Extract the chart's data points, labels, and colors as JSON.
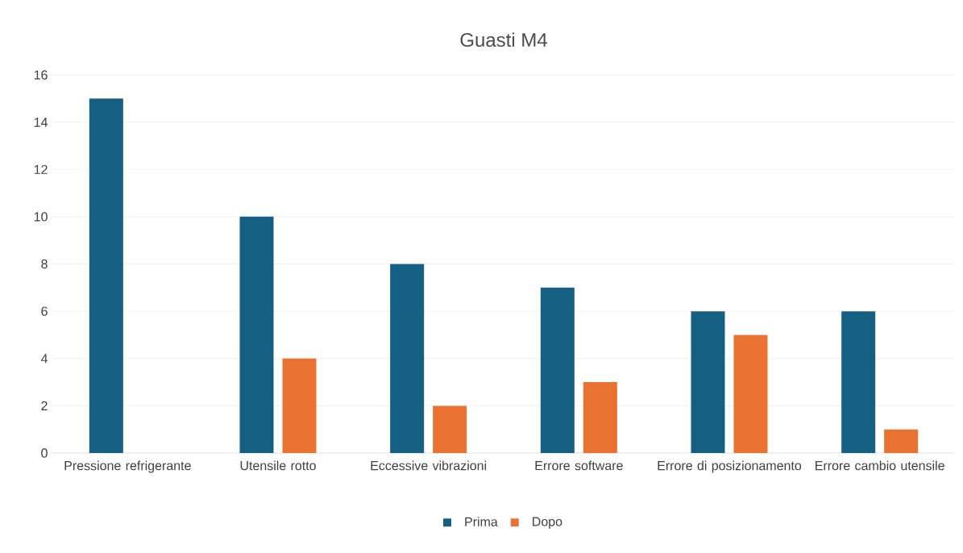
{
  "chart_data": {
    "type": "bar",
    "title": "Guasti M4",
    "categories": [
      "Pressione refrigerante",
      "Utensile rotto",
      "Eccessive vibrazioni",
      "Errore software",
      "Errore di posizionamento",
      "Errore cambio utensile"
    ],
    "series": [
      {
        "name": "Prima",
        "color": "#156082",
        "values": [
          15,
          10,
          8,
          7,
          6,
          6
        ]
      },
      {
        "name": "Dopo",
        "color": "#e97132",
        "values": [
          0,
          4,
          2,
          3,
          5,
          1
        ]
      }
    ],
    "ylim": [
      0,
      16
    ],
    "yticks": [
      0,
      2,
      4,
      6,
      8,
      10,
      12,
      14,
      16
    ],
    "grid": "y",
    "legend": "bottom"
  }
}
